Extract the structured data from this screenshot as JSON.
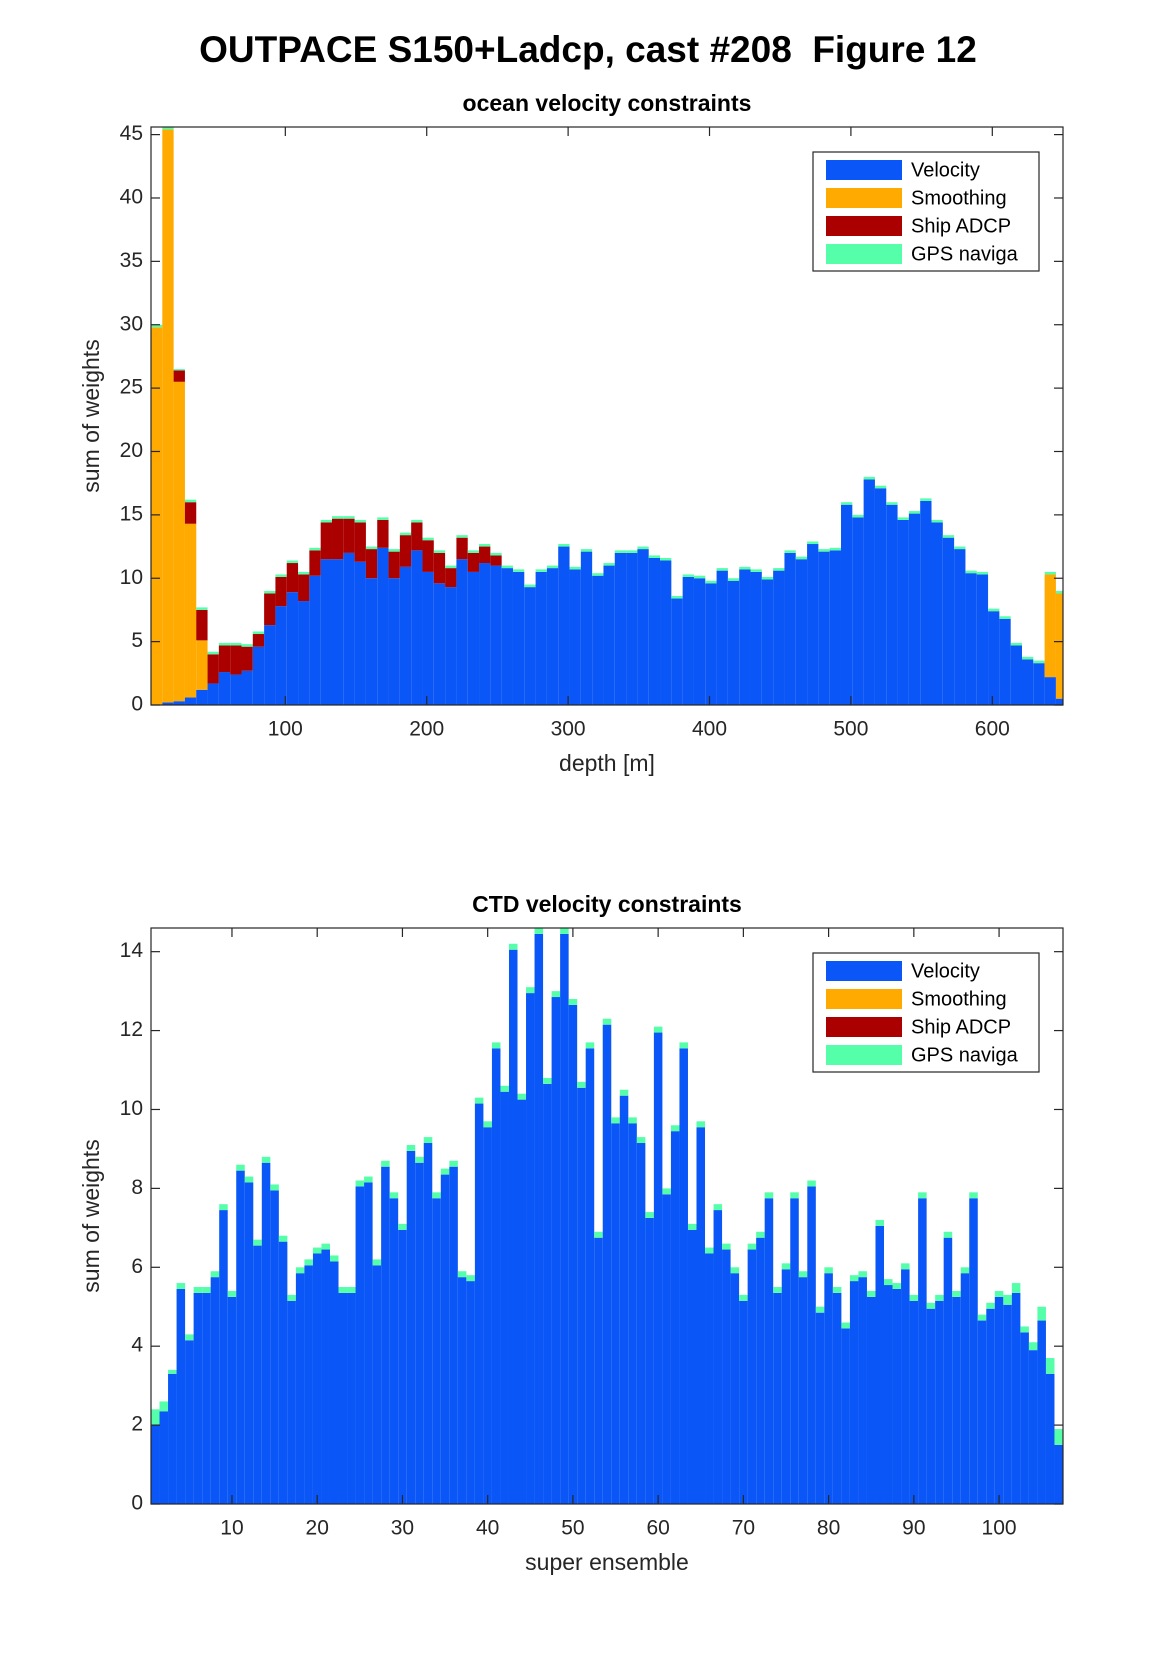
{
  "title": "OUTPACE S150+Ladcp, cast #208  Figure 12",
  "chart_data": [
    {
      "type": "bar",
      "stacked": true,
      "title": "ocean velocity constraints",
      "xlabel": "depth [m]",
      "ylabel": "sum of weights",
      "x": [
        9,
        17,
        25,
        33,
        41,
        49,
        57,
        65,
        73,
        81,
        89,
        97,
        105,
        113,
        121,
        129,
        137,
        145,
        153,
        161,
        169,
        177,
        185,
        193,
        201,
        209,
        217,
        225,
        233,
        241,
        249,
        257,
        265,
        273,
        281,
        289,
        297,
        305,
        313,
        321,
        329,
        337,
        345,
        353,
        361,
        369,
        377,
        385,
        393,
        401,
        409,
        417,
        425,
        433,
        441,
        449,
        457,
        465,
        473,
        481,
        489,
        497,
        505,
        513,
        521,
        529,
        537,
        545,
        553,
        561,
        569,
        577,
        585,
        593,
        601,
        609,
        617,
        625,
        633,
        641,
        649
      ],
      "series": [
        {
          "name": "Velocity",
          "color": "#0a56f7",
          "values": [
            0,
            0.2,
            0.3,
            0.6,
            1.2,
            1.7,
            2.6,
            2.4,
            2.7,
            4.6,
            6.3,
            7.8,
            8.9,
            8.2,
            10.2,
            11.5,
            11.5,
            12.0,
            11.3,
            10.0,
            12.4,
            10.0,
            10.9,
            12.2,
            10.5,
            9.6,
            9.3,
            11.5,
            10.5,
            11.2,
            11.0,
            10.8,
            10.5,
            9.3,
            10.5,
            10.8,
            12.5,
            10.7,
            12.1,
            10.2,
            11.0,
            12.0,
            12.0,
            12.3,
            11.6,
            11.4,
            8.4,
            10.1,
            10.0,
            9.6,
            10.6,
            9.8,
            10.7,
            10.5,
            9.9,
            10.6,
            12.0,
            11.5,
            12.7,
            12.1,
            12.2,
            15.8,
            14.8,
            17.8,
            17.1,
            15.8,
            14.6,
            15.1,
            16.1,
            14.4,
            13.2,
            12.3,
            10.4,
            10.3,
            7.4,
            6.8,
            4.7,
            3.6,
            3.3,
            2.2,
            0.5
          ]
        },
        {
          "name": "Smoothing",
          "color": "#ffaa00",
          "values": [
            29.8,
            45.2,
            25.2,
            13.7,
            3.9,
            0,
            0,
            0,
            0,
            0,
            0,
            0,
            0,
            0,
            0,
            0,
            0,
            0,
            0,
            0,
            0,
            0,
            0,
            0,
            0,
            0,
            0,
            0,
            0,
            0,
            0,
            0,
            0,
            0,
            0,
            0,
            0,
            0,
            0,
            0,
            0,
            0,
            0,
            0,
            0,
            0,
            0,
            0,
            0,
            0,
            0,
            0,
            0,
            0,
            0,
            0,
            0,
            0,
            0,
            0,
            0,
            0,
            0,
            0,
            0,
            0,
            0,
            0,
            0,
            0,
            0,
            0,
            0,
            0,
            0,
            0,
            0,
            0,
            0,
            8.1,
            8.3
          ]
        },
        {
          "name": "Ship ADCP",
          "color": "#aa0000",
          "values": [
            0,
            0,
            0.9,
            1.7,
            2.4,
            2.3,
            2.1,
            2.3,
            1.9,
            1.0,
            2.5,
            2.3,
            2.3,
            2.1,
            2.0,
            2.9,
            3.2,
            2.7,
            3.1,
            2.3,
            2.2,
            2.1,
            2.5,
            2.2,
            2.5,
            2.4,
            1.5,
            1.7,
            1.5,
            1.3,
            0.8,
            0,
            0,
            0,
            0,
            0,
            0,
            0,
            0,
            0,
            0,
            0,
            0,
            0,
            0,
            0,
            0,
            0,
            0,
            0,
            0,
            0,
            0,
            0,
            0,
            0,
            0,
            0,
            0,
            0,
            0,
            0,
            0,
            0,
            0,
            0,
            0,
            0,
            0,
            0,
            0,
            0,
            0,
            0,
            0,
            0,
            0,
            0,
            0,
            0,
            0
          ]
        },
        {
          "name": "GPS naviga",
          "color": "#55ffaa",
          "values": [
            0.2,
            0.2,
            0.1,
            0.2,
            0.2,
            0.2,
            0.2,
            0.2,
            0.2,
            0.2,
            0.2,
            0.2,
            0.2,
            0.2,
            0.2,
            0.2,
            0.2,
            0.2,
            0.2,
            0.2,
            0.2,
            0.2,
            0.2,
            0.2,
            0.2,
            0.2,
            0.2,
            0.2,
            0.2,
            0.2,
            0.2,
            0.2,
            0.2,
            0.2,
            0.2,
            0.2,
            0.2,
            0.2,
            0.2,
            0.2,
            0.2,
            0.2,
            0.2,
            0.2,
            0.2,
            0.2,
            0.2,
            0.2,
            0.2,
            0.2,
            0.2,
            0.2,
            0.2,
            0.2,
            0.2,
            0.2,
            0.2,
            0.2,
            0.2,
            0.2,
            0.2,
            0.2,
            0.2,
            0.2,
            0.2,
            0.2,
            0.2,
            0.2,
            0.2,
            0.2,
            0.2,
            0.2,
            0.2,
            0.2,
            0.2,
            0.2,
            0.2,
            0.2,
            0.2,
            0.2,
            0.2
          ]
        }
      ],
      "xlim": [
        5,
        650
      ],
      "xticks": [
        100,
        200,
        300,
        400,
        500,
        600
      ],
      "ylim": [
        0,
        45.6
      ],
      "yticks": [
        0,
        5,
        10,
        15,
        20,
        25,
        30,
        35,
        40,
        45
      ],
      "legend": "northeast"
    },
    {
      "type": "bar",
      "stacked": true,
      "title": "CTD velocity constraints",
      "xlabel": "super ensemble",
      "ylabel": "sum of weights",
      "x": [
        1,
        2,
        3,
        4,
        5,
        6,
        7,
        8,
        9,
        10,
        11,
        12,
        13,
        14,
        15,
        16,
        17,
        18,
        19,
        20,
        21,
        22,
        23,
        24,
        25,
        26,
        27,
        28,
        29,
        30,
        31,
        32,
        33,
        34,
        35,
        36,
        37,
        38,
        39,
        40,
        41,
        42,
        43,
        44,
        45,
        46,
        47,
        48,
        49,
        50,
        51,
        52,
        53,
        54,
        55,
        56,
        57,
        58,
        59,
        60,
        61,
        62,
        63,
        64,
        65,
        66,
        67,
        68,
        69,
        70,
        71,
        72,
        73,
        74,
        75,
        76,
        77,
        78,
        79,
        80,
        81,
        82,
        83,
        84,
        85,
        86,
        87,
        88,
        89,
        90,
        91,
        92,
        93,
        94,
        95,
        96,
        97,
        98,
        99,
        100,
        101,
        102,
        103,
        104,
        105,
        106,
        107
      ],
      "series": [
        {
          "name": "Velocity",
          "color": "#0a56f7",
          "values": [
            2.0,
            2.35,
            3.3,
            5.45,
            4.15,
            5.35,
            5.35,
            5.75,
            7.45,
            5.25,
            8.45,
            8.15,
            6.55,
            8.65,
            7.95,
            6.65,
            5.15,
            5.85,
            6.05,
            6.35,
            6.45,
            6.15,
            5.35,
            5.35,
            8.05,
            8.15,
            6.05,
            8.55,
            7.75,
            6.95,
            8.95,
            8.65,
            9.15,
            7.75,
            8.35,
            8.55,
            5.75,
            5.65,
            10.15,
            9.55,
            11.55,
            10.45,
            14.05,
            10.25,
            12.95,
            14.45,
            10.65,
            12.85,
            14.45,
            12.65,
            10.55,
            11.55,
            6.75,
            12.15,
            9.65,
            10.35,
            9.65,
            9.15,
            7.25,
            11.95,
            7.85,
            9.45,
            11.55,
            6.95,
            9.55,
            6.35,
            7.45,
            6.45,
            5.85,
            5.15,
            6.45,
            6.75,
            7.75,
            5.35,
            5.95,
            7.75,
            5.75,
            8.05,
            4.85,
            5.85,
            5.35,
            4.45,
            5.65,
            5.75,
            5.25,
            7.05,
            5.55,
            5.45,
            5.95,
            5.15,
            7.75,
            4.95,
            5.15,
            6.75,
            5.25,
            5.85,
            7.75,
            4.65,
            4.95,
            5.25,
            5.05,
            5.35,
            4.35,
            3.9,
            4.65,
            3.3,
            1.5
          ]
        },
        {
          "name": "Smoothing",
          "color": "#ffaa00",
          "values": [
            0,
            0,
            0,
            0,
            0,
            0,
            0,
            0,
            0,
            0,
            0,
            0,
            0,
            0,
            0,
            0,
            0,
            0,
            0,
            0,
            0,
            0,
            0,
            0,
            0,
            0,
            0,
            0,
            0,
            0,
            0,
            0,
            0,
            0,
            0,
            0,
            0,
            0,
            0,
            0,
            0,
            0,
            0,
            0,
            0,
            0,
            0,
            0,
            0,
            0,
            0,
            0,
            0,
            0,
            0,
            0,
            0,
            0,
            0,
            0,
            0,
            0,
            0,
            0,
            0,
            0,
            0,
            0,
            0,
            0,
            0,
            0,
            0,
            0,
            0,
            0,
            0,
            0,
            0,
            0,
            0,
            0,
            0,
            0,
            0,
            0,
            0,
            0,
            0,
            0,
            0,
            0,
            0,
            0,
            0,
            0,
            0,
            0,
            0,
            0,
            0,
            0,
            0,
            0,
            0,
            0,
            0
          ]
        },
        {
          "name": "Ship ADCP",
          "color": "#aa0000",
          "values": [
            0,
            0,
            0,
            0,
            0,
            0,
            0,
            0,
            0,
            0,
            0,
            0,
            0,
            0,
            0,
            0,
            0,
            0,
            0,
            0,
            0,
            0,
            0,
            0,
            0,
            0,
            0,
            0,
            0,
            0,
            0,
            0,
            0,
            0,
            0,
            0,
            0,
            0,
            0,
            0,
            0,
            0,
            0,
            0,
            0,
            0,
            0,
            0,
            0,
            0,
            0,
            0,
            0,
            0,
            0,
            0,
            0,
            0,
            0,
            0,
            0,
            0,
            0,
            0,
            0,
            0,
            0,
            0,
            0,
            0,
            0,
            0,
            0,
            0,
            0,
            0,
            0,
            0,
            0,
            0,
            0,
            0,
            0,
            0,
            0,
            0,
            0,
            0,
            0,
            0,
            0,
            0,
            0,
            0,
            0,
            0,
            0,
            0,
            0,
            0,
            0,
            0,
            0,
            0,
            0,
            0,
            0
          ]
        },
        {
          "name": "GPS naviga",
          "color": "#55ffaa",
          "values": [
            0.4,
            0.25,
            0.1,
            0.15,
            0.15,
            0.15,
            0.15,
            0.15,
            0.15,
            0.15,
            0.15,
            0.15,
            0.15,
            0.15,
            0.15,
            0.15,
            0.15,
            0.15,
            0.15,
            0.15,
            0.15,
            0.15,
            0.15,
            0.15,
            0.15,
            0.15,
            0.15,
            0.15,
            0.15,
            0.15,
            0.15,
            0.15,
            0.15,
            0.15,
            0.15,
            0.15,
            0.15,
            0.15,
            0.15,
            0.15,
            0.15,
            0.15,
            0.15,
            0.15,
            0.15,
            0.15,
            0.15,
            0.15,
            0.15,
            0.15,
            0.15,
            0.15,
            0.15,
            0.15,
            0.15,
            0.15,
            0.15,
            0.15,
            0.15,
            0.15,
            0.15,
            0.15,
            0.15,
            0.15,
            0.15,
            0.15,
            0.15,
            0.15,
            0.15,
            0.15,
            0.15,
            0.15,
            0.15,
            0.15,
            0.15,
            0.15,
            0.15,
            0.15,
            0.15,
            0.15,
            0.15,
            0.15,
            0.15,
            0.15,
            0.15,
            0.15,
            0.15,
            0.15,
            0.15,
            0.15,
            0.15,
            0.15,
            0.15,
            0.15,
            0.15,
            0.15,
            0.15,
            0.15,
            0.15,
            0.15,
            0.25,
            0.25,
            0.15,
            0.2,
            0.35,
            0.4,
            0.4
          ]
        }
      ],
      "xlim": [
        0.5,
        107.5
      ],
      "xticks": [
        10,
        20,
        30,
        40,
        50,
        60,
        70,
        80,
        90,
        100
      ],
      "ylim": [
        0,
        14.6
      ],
      "yticks": [
        0,
        2,
        4,
        6,
        8,
        10,
        12,
        14
      ],
      "legend": "northeast"
    }
  ]
}
